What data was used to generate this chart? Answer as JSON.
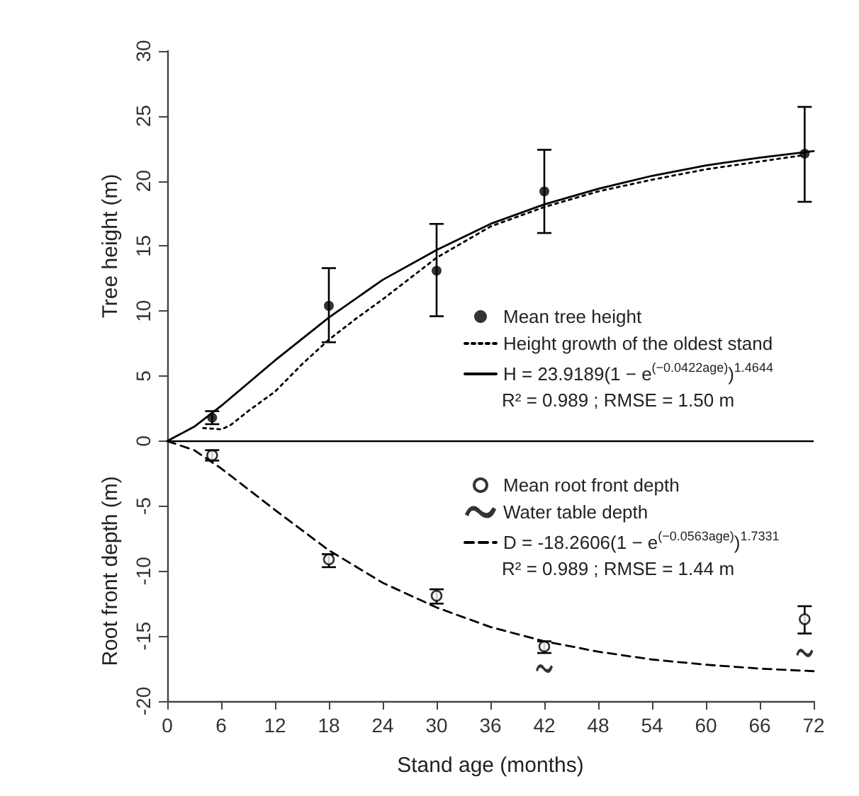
{
  "chart_data": {
    "type": "scatter",
    "xlabel": "Stand age (months)",
    "ylabel": [
      "Tree height (m)",
      "Root front depth (m)"
    ],
    "xlim": [
      0,
      72
    ],
    "xticks": [
      0,
      6,
      12,
      18,
      24,
      30,
      36,
      42,
      48,
      54,
      60,
      66,
      72
    ],
    "ylim": [
      -20,
      30
    ],
    "yticks": [
      -20,
      -15,
      -10,
      -5,
      0,
      5,
      10,
      15,
      20,
      25,
      30
    ],
    "grid": false,
    "legend": "right",
    "ref_lines": [
      {
        "axis": "y",
        "value": 0,
        "color": "#000000",
        "line_style": "solid"
      }
    ],
    "annotations": [
      "R² = 0.989 ; RMSE = 1.50 m",
      "R² = 0.989 ; RMSE = 1.44 m"
    ],
    "series": [
      {
        "name": "Mean tree height",
        "marker": "circle",
        "color": "#000000",
        "x": [
          5,
          18,
          30,
          42,
          71
        ],
        "values": [
          1.8,
          10.4,
          13.1,
          19.2,
          22.1
        ],
        "errors": [
          [
            1.3,
            2.3
          ],
          [
            7.6,
            13.3
          ],
          [
            9.6,
            16.7
          ],
          [
            16.0,
            22.4
          ],
          [
            18.4,
            25.7
          ]
        ]
      },
      {
        "name": "Height growth of the oldest stand",
        "type": "line",
        "line_style": "dotted",
        "color": "#000000",
        "x": [
          4,
          6,
          7,
          9,
          12,
          15,
          18,
          21,
          24,
          27,
          30,
          33,
          36,
          42,
          48,
          54,
          60,
          66,
          71
        ],
        "values": [
          1.0,
          0.9,
          1.2,
          2.3,
          3.8,
          5.9,
          7.8,
          9.4,
          10.9,
          12.5,
          14.1,
          15.3,
          16.5,
          18.0,
          19.2,
          20.1,
          20.9,
          21.5,
          22.0
        ]
      },
      {
        "name": "H = 23.9189(1 − e$^{(−0.0422age)}$)$^{1.4644}$",
        "type": "line",
        "line_style": "solid",
        "color": "#000000",
        "x": [
          0,
          3,
          6,
          12,
          18,
          24,
          30,
          36,
          42,
          48,
          54,
          60,
          66,
          72
        ],
        "values": [
          0,
          1.1,
          2.7,
          6.2,
          9.5,
          12.4,
          14.7,
          16.7,
          18.2,
          19.4,
          20.4,
          21.2,
          21.8,
          22.3
        ]
      },
      {
        "name": "Mean root front depth",
        "marker": "hollow circle",
        "color": "#000000",
        "x": [
          5,
          18,
          30,
          42,
          71
        ],
        "values": [
          -1.1,
          -9.1,
          -11.9,
          -15.8,
          -13.7
        ],
        "errors": [
          [
            -1.5,
            -0.7
          ],
          [
            -9.7,
            -8.7
          ],
          [
            -12.5,
            -11.4
          ],
          [
            -16.3,
            -15.4
          ],
          [
            -14.8,
            -12.7
          ]
        ]
      },
      {
        "name": "Water table depth",
        "color": "#000000",
        "x": [
          42,
          71
        ],
        "values": [
          -17.5,
          -16.3
        ]
      },
      {
        "name": "D = -18.2606(1 − e$^{(−0.0563age)}$)$^{1.7331}$",
        "type": "line",
        "line_style": "dashed",
        "color": "#000000",
        "x": [
          0,
          3,
          6,
          12,
          18,
          24,
          30,
          36,
          42,
          48,
          54,
          60,
          66,
          72
        ],
        "values": [
          0,
          -0.7,
          -2.1,
          -5.3,
          -8.4,
          -10.9,
          -12.8,
          -14.3,
          -15.4,
          -16.2,
          -16.8,
          -17.2,
          -17.5,
          -17.7
        ]
      }
    ]
  }
}
